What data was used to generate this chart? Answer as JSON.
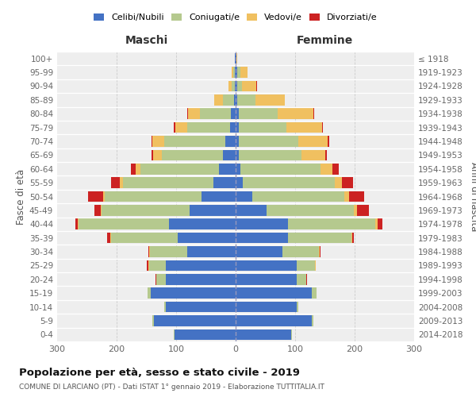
{
  "age_groups": [
    "100+",
    "95-99",
    "90-94",
    "85-89",
    "80-84",
    "75-79",
    "70-74",
    "65-69",
    "60-64",
    "55-59",
    "50-54",
    "45-49",
    "40-44",
    "35-39",
    "30-34",
    "25-29",
    "20-24",
    "15-19",
    "10-14",
    "5-9",
    "0-4"
  ],
  "birth_years": [
    "≤ 1918",
    "1919-1923",
    "1924-1928",
    "1929-1933",
    "1934-1938",
    "1939-1943",
    "1944-1948",
    "1949-1953",
    "1954-1958",
    "1959-1963",
    "1964-1968",
    "1969-1973",
    "1974-1978",
    "1979-1983",
    "1984-1988",
    "1989-1993",
    "1994-1998",
    "1999-2003",
    "2004-2008",
    "2009-2013",
    "2014-2018"
  ],
  "colors": {
    "celibi": "#4472c4",
    "coniugati": "#b5c98e",
    "vedovi": "#f0c060",
    "divorziati": "#cc2222"
  },
  "maschi": {
    "celibi": [
      1,
      2,
      2,
      3,
      8,
      10,
      18,
      22,
      28,
      38,
      58,
      78,
      112,
      98,
      82,
      118,
      118,
      143,
      118,
      138,
      103
    ],
    "coniugati": [
      0,
      2,
      5,
      18,
      52,
      72,
      102,
      102,
      132,
      152,
      162,
      147,
      152,
      112,
      62,
      28,
      15,
      5,
      2,
      2,
      1
    ],
    "vedovi": [
      0,
      3,
      5,
      15,
      20,
      20,
      20,
      15,
      8,
      5,
      3,
      2,
      1,
      1,
      1,
      1,
      1,
      0,
      0,
      0,
      0
    ],
    "divorziati": [
      0,
      0,
      0,
      0,
      1,
      2,
      2,
      3,
      8,
      15,
      25,
      10,
      5,
      5,
      2,
      2,
      1,
      0,
      0,
      0,
      0
    ]
  },
  "femmine": {
    "celibi": [
      1,
      3,
      2,
      3,
      5,
      5,
      5,
      5,
      8,
      12,
      28,
      52,
      88,
      88,
      78,
      103,
      103,
      128,
      103,
      128,
      93
    ],
    "coniugati": [
      0,
      5,
      8,
      30,
      65,
      80,
      100,
      105,
      135,
      155,
      155,
      147,
      147,
      107,
      62,
      30,
      15,
      8,
      2,
      2,
      1
    ],
    "vedovi": [
      2,
      12,
      25,
      50,
      60,
      60,
      50,
      40,
      20,
      12,
      8,
      5,
      3,
      1,
      1,
      1,
      1,
      0,
      0,
      0,
      0
    ],
    "divorziati": [
      0,
      0,
      1,
      0,
      2,
      2,
      2,
      3,
      10,
      18,
      25,
      20,
      8,
      2,
      2,
      1,
      1,
      0,
      0,
      0,
      0
    ]
  },
  "xlim": 300,
  "title": "Popolazione per età, sesso e stato civile - 2019",
  "subtitle": "COMUNE DI LARCIANO (PT) - Dati ISTAT 1° gennaio 2019 - Elaborazione TUTTITALIA.IT",
  "ylabel_left": "Fasce di età",
  "ylabel_right": "Anni di nascita",
  "xlabel_left": "Maschi",
  "xlabel_right": "Femmine",
  "bg_color": "#eeeeee"
}
